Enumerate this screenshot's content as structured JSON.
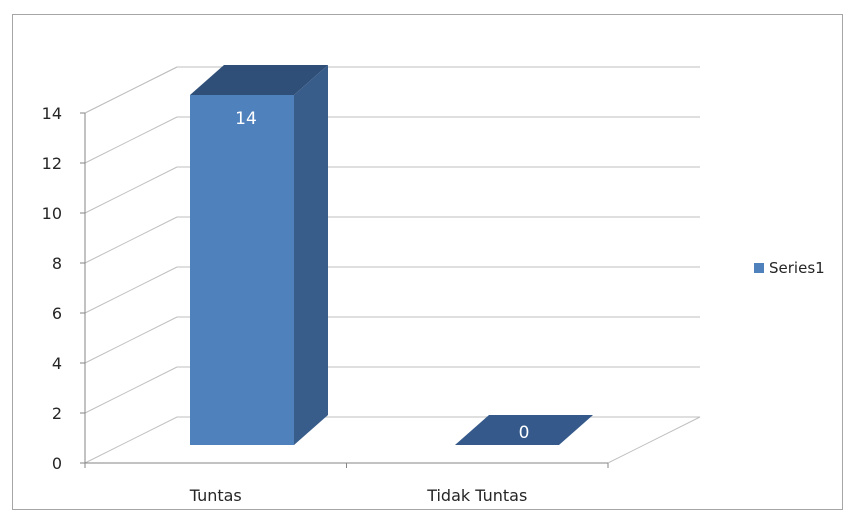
{
  "chart_data": {
    "type": "bar",
    "categories": [
      "Tuntas",
      "Tidak Tuntas"
    ],
    "series": [
      {
        "name": "Series1",
        "values": [
          14,
          0
        ],
        "color": "#4f81bd"
      }
    ],
    "data_labels": [
      "14",
      "0"
    ],
    "y_ticks": [
      "0",
      "2",
      "4",
      "6",
      "8",
      "10",
      "12",
      "14"
    ],
    "ylim": [
      0,
      14
    ],
    "grid": true,
    "legend_position": "right",
    "style": "3d-column"
  }
}
